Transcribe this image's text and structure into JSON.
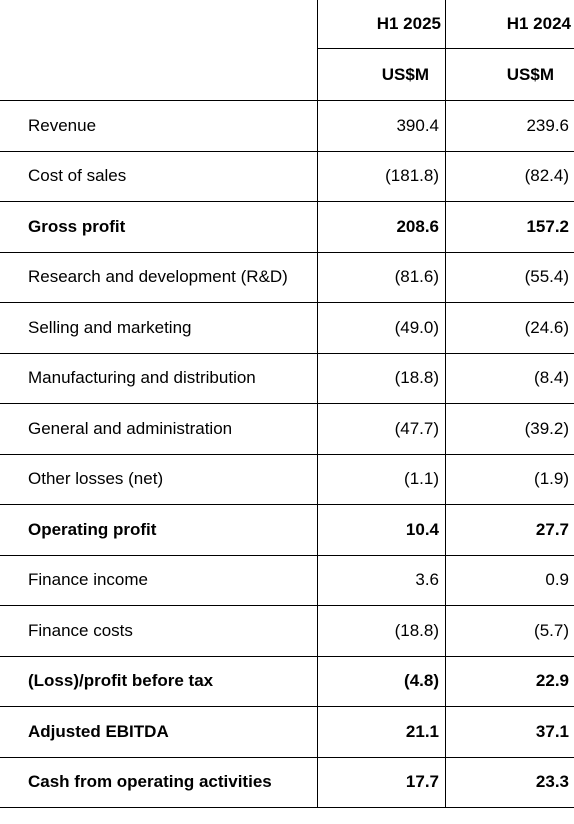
{
  "header": {
    "col1_period": "H1 2025",
    "col2_period": "H1 2024",
    "col1_unit": "US$M",
    "col2_unit": "US$M"
  },
  "rows": [
    {
      "label": "Revenue",
      "h1_2025": "390.4",
      "h1_2024": "239.6",
      "bold": false
    },
    {
      "label": "Cost of sales",
      "h1_2025": "(181.8)",
      "h1_2024": "(82.4)",
      "bold": false
    },
    {
      "label": "Gross profit",
      "h1_2025": "208.6",
      "h1_2024": "157.2",
      "bold": true
    },
    {
      "label": "Research and development (R&D)",
      "h1_2025": "(81.6)",
      "h1_2024": "(55.4)",
      "bold": false
    },
    {
      "label": "Selling and marketing",
      "h1_2025": "(49.0)",
      "h1_2024": "(24.6)",
      "bold": false
    },
    {
      "label": "Manufacturing and distribution",
      "h1_2025": "(18.8)",
      "h1_2024": "(8.4)",
      "bold": false
    },
    {
      "label": "General and administration",
      "h1_2025": "(47.7)",
      "h1_2024": "(39.2)",
      "bold": false
    },
    {
      "label": "Other losses (net)",
      "h1_2025": "(1.1)",
      "h1_2024": "(1.9)",
      "bold": false
    },
    {
      "label": "Operating profit",
      "h1_2025": "10.4",
      "h1_2024": "27.7",
      "bold": true
    },
    {
      "label": "Finance income",
      "h1_2025": "3.6",
      "h1_2024": "0.9",
      "bold": false
    },
    {
      "label": "Finance costs",
      "h1_2025": "(18.8)",
      "h1_2024": "(5.7)",
      "bold": false
    },
    {
      "label": "(Loss)/profit before tax",
      "h1_2025": "(4.8)",
      "h1_2024": "22.9",
      "bold": true
    },
    {
      "label": "Adjusted EBITDA",
      "h1_2025": "21.1",
      "h1_2024": "37.1",
      "bold": true
    },
    {
      "label": "Cash from operating activities",
      "h1_2025": "17.7",
      "h1_2024": "23.3",
      "bold": true
    }
  ]
}
